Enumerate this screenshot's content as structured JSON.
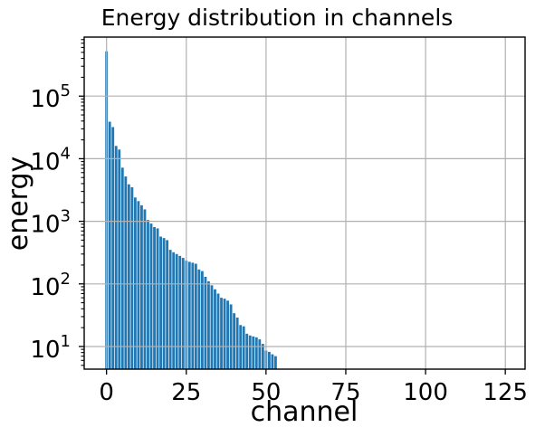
{
  "chart_data": {
    "type": "bar",
    "title": "Energy distribution in channels",
    "xlabel": "channel",
    "ylabel": "energy",
    "yscale": "log",
    "grid": true,
    "legend": false,
    "bar_color": "#1f77b4",
    "grid_color": "#b0b0b0",
    "spine_color": "#000000",
    "x_ticks": [
      0,
      25,
      50,
      75,
      100,
      125
    ],
    "y_tick_base": "10",
    "y_tick_exponents": [
      1,
      2,
      3,
      4,
      5
    ],
    "xlim": [
      -7,
      131.2
    ],
    "ylim_log10": [
      0.638,
      5.943
    ],
    "bar_width_channels": 0.8,
    "channels": [
      0,
      1,
      2,
      3,
      4,
      5,
      6,
      7,
      8,
      9,
      10,
      11,
      12,
      13,
      14,
      15,
      16,
      17,
      18,
      19,
      20,
      21,
      22,
      23,
      24,
      25,
      26,
      27,
      28,
      29,
      30,
      31,
      32,
      33,
      34,
      35,
      36,
      37,
      38,
      39,
      40,
      41,
      42,
      43,
      44,
      45,
      46,
      47,
      48,
      49,
      50,
      51,
      52,
      53
    ],
    "values": [
      520000,
      39000,
      32000,
      16000,
      14000,
      7200,
      5200,
      3900,
      3500,
      2400,
      2100,
      1800,
      1550,
      1050,
      920,
      810,
      770,
      570,
      540,
      500,
      350,
      320,
      300,
      280,
      260,
      235,
      225,
      218,
      210,
      170,
      160,
      130,
      110,
      95,
      82,
      70,
      60,
      58,
      54,
      47,
      34,
      29,
      22,
      21,
      16,
      15,
      14.5,
      14,
      13,
      11,
      8.6,
      8.2,
      7.5,
      7
    ]
  }
}
